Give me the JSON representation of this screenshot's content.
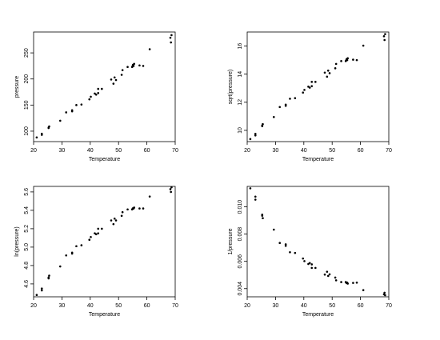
{
  "chart_data": [
    {
      "type": "scatter",
      "xlabel": "Temperature",
      "ylabel": "pressure",
      "xlim": [
        20,
        70
      ],
      "ylim": [
        80,
        290
      ],
      "xticks": [
        "20",
        "30",
        "40",
        "50",
        "60",
        "70"
      ],
      "yticks": [
        "100",
        "150",
        "200",
        "250"
      ],
      "ytick_values": [
        100,
        150,
        200,
        250
      ],
      "x": [
        21.1,
        22.9,
        22.9,
        25.3,
        25.3,
        25.5,
        29.4,
        31.5,
        33.6,
        33.6,
        35.1,
        36.9,
        39.7,
        40.2,
        41.6,
        42.1,
        42.8,
        42.8,
        44.1,
        47.4,
        48.2,
        48.6,
        49.1,
        51.1,
        51.4,
        53.2,
        54.8,
        55.0,
        55.1,
        55.3,
        55.5,
        57.4,
        58.7,
        61.0,
        68.3,
        68.5,
        68.7
      ],
      "y": [
        88,
        93,
        95,
        106,
        107,
        109,
        120,
        136,
        138,
        140,
        150,
        151,
        161,
        166,
        172,
        170,
        181,
        173,
        181,
        199,
        191,
        203,
        198,
        208,
        217,
        223,
        223,
        225,
        227,
        225,
        229,
        226,
        225,
        257,
        279,
        270,
        284
      ]
    },
    {
      "type": "scatter",
      "xlabel": "Temperature",
      "ylabel": "sqrt(pressure)",
      "xlim": [
        20,
        70
      ],
      "ylim": [
        9.2,
        17.0
      ],
      "xticks": [
        "20",
        "30",
        "40",
        "50",
        "60",
        "70"
      ],
      "yticks": [
        "10",
        "12",
        "14",
        "16"
      ],
      "ytick_values": [
        10,
        12,
        14,
        16
      ],
      "x": [
        21.1,
        22.9,
        22.9,
        25.3,
        25.3,
        25.5,
        29.4,
        31.5,
        33.6,
        33.6,
        35.1,
        36.9,
        39.7,
        40.2,
        41.6,
        42.1,
        42.8,
        42.8,
        44.1,
        47.4,
        48.2,
        48.6,
        49.1,
        51.1,
        51.4,
        53.2,
        54.8,
        55.0,
        55.1,
        55.3,
        55.5,
        57.4,
        58.7,
        61.0,
        68.3,
        68.5,
        68.7
      ],
      "y": [
        9.38,
        9.64,
        9.75,
        10.3,
        10.34,
        10.44,
        10.95,
        11.66,
        11.75,
        11.83,
        12.25,
        12.29,
        12.69,
        12.88,
        13.11,
        13.04,
        13.45,
        13.15,
        13.45,
        14.11,
        13.82,
        14.25,
        14.07,
        14.42,
        14.73,
        14.93,
        14.93,
        15.0,
        15.07,
        15.0,
        15.13,
        15.03,
        15.0,
        16.03,
        16.7,
        16.43,
        16.85
      ]
    },
    {
      "type": "scatter",
      "xlabel": "Temperature",
      "ylabel": "ln(pressure)",
      "xlim": [
        20,
        70
      ],
      "ylim": [
        4.46,
        5.66
      ],
      "xticks": [
        "20",
        "30",
        "40",
        "50",
        "60",
        "70"
      ],
      "yticks": [
        "4.6",
        "4.8",
        "5.0",
        "5.2",
        "5.4",
        "5.6"
      ],
      "ytick_values": [
        4.6,
        4.8,
        5.0,
        5.2,
        5.4,
        5.6
      ],
      "x": [
        21.1,
        22.9,
        22.9,
        25.3,
        25.3,
        25.5,
        29.4,
        31.5,
        33.6,
        33.6,
        35.1,
        36.9,
        39.7,
        40.2,
        41.6,
        42.1,
        42.8,
        42.8,
        44.1,
        47.4,
        48.2,
        48.6,
        49.1,
        51.1,
        51.4,
        53.2,
        54.8,
        55.0,
        55.1,
        55.3,
        55.5,
        57.4,
        58.7,
        61.0,
        68.3,
        68.5,
        68.7
      ],
      "y": [
        4.48,
        4.53,
        4.55,
        4.66,
        4.67,
        4.69,
        4.79,
        4.91,
        4.93,
        4.94,
        5.01,
        5.02,
        5.08,
        5.11,
        5.15,
        5.14,
        5.2,
        5.15,
        5.2,
        5.29,
        5.25,
        5.31,
        5.29,
        5.34,
        5.38,
        5.41,
        5.41,
        5.42,
        5.42,
        5.42,
        5.43,
        5.42,
        5.42,
        5.55,
        5.63,
        5.6,
        5.65
      ]
    },
    {
      "type": "scatter",
      "xlabel": "Temperature",
      "ylabel": "1/pressure",
      "xlim": [
        20,
        70
      ],
      "ylim": [
        0.0034,
        0.0115
      ],
      "xticks": [
        "20",
        "30",
        "40",
        "50",
        "60",
        "70"
      ],
      "yticks": [
        "0.004",
        "0.006",
        "0.008",
        "0.010"
      ],
      "ytick_values": [
        0.004,
        0.006,
        0.008,
        0.01
      ],
      "x": [
        21.1,
        22.9,
        22.9,
        25.3,
        25.3,
        25.5,
        29.4,
        31.5,
        33.6,
        33.6,
        35.1,
        36.9,
        39.7,
        40.2,
        41.6,
        42.1,
        42.8,
        42.8,
        44.1,
        47.4,
        48.2,
        48.6,
        49.1,
        51.1,
        51.4,
        53.2,
        54.8,
        55.0,
        55.1,
        55.3,
        55.5,
        57.4,
        58.7,
        61.0,
        68.3,
        68.5,
        68.7
      ],
      "y": [
        0.01136,
        0.01075,
        0.01053,
        0.00943,
        0.00935,
        0.00917,
        0.00833,
        0.00735,
        0.00725,
        0.00714,
        0.00667,
        0.00662,
        0.00621,
        0.00602,
        0.00581,
        0.00588,
        0.00552,
        0.00578,
        0.00552,
        0.00503,
        0.00524,
        0.00493,
        0.00505,
        0.00481,
        0.00461,
        0.00448,
        0.00448,
        0.00444,
        0.00441,
        0.00444,
        0.00437,
        0.00442,
        0.00444,
        0.00389,
        0.00358,
        0.0037,
        0.00352
      ]
    }
  ]
}
